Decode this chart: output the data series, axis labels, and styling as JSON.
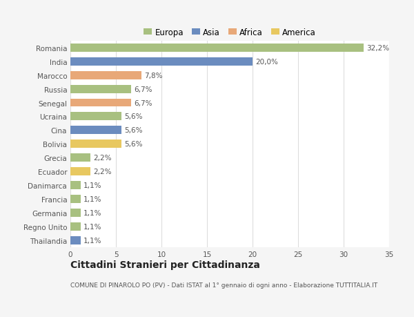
{
  "categories": [
    "Romania",
    "India",
    "Marocco",
    "Russia",
    "Senegal",
    "Ucraina",
    "Cina",
    "Bolivia",
    "Grecia",
    "Ecuador",
    "Danimarca",
    "Francia",
    "Germania",
    "Regno Unito",
    "Thailandia"
  ],
  "values": [
    32.2,
    20.0,
    7.8,
    6.7,
    6.7,
    5.6,
    5.6,
    5.6,
    2.2,
    2.2,
    1.1,
    1.1,
    1.1,
    1.1,
    1.1
  ],
  "labels": [
    "32,2%",
    "20,0%",
    "7,8%",
    "6,7%",
    "6,7%",
    "5,6%",
    "5,6%",
    "5,6%",
    "2,2%",
    "2,2%",
    "1,1%",
    "1,1%",
    "1,1%",
    "1,1%",
    "1,1%"
  ],
  "colors": [
    "#a8c080",
    "#6b8cbf",
    "#e8a878",
    "#a8c080",
    "#e8a878",
    "#a8c080",
    "#6b8cbf",
    "#e8c860",
    "#a8c080",
    "#e8c860",
    "#a8c080",
    "#a8c080",
    "#a8c080",
    "#a8c080",
    "#6b8cbf"
  ],
  "legend_labels": [
    "Europa",
    "Asia",
    "Africa",
    "America"
  ],
  "legend_colors": [
    "#a8c080",
    "#6b8cbf",
    "#e8a878",
    "#e8c860"
  ],
  "title": "Cittadini Stranieri per Cittadinanza",
  "subtitle": "COMUNE DI PINAROLO PO (PV) - Dati ISTAT al 1° gennaio di ogni anno - Elaborazione TUTTITALIA.IT",
  "xlim": [
    0,
    35
  ],
  "xticks": [
    0,
    5,
    10,
    15,
    20,
    25,
    30,
    35
  ],
  "background_color": "#f5f5f5",
  "plot_background": "#ffffff",
  "grid_color": "#dddddd",
  "bar_height": 0.6,
  "label_fontsize": 7.5,
  "tick_fontsize": 7.5,
  "title_fontsize": 10,
  "subtitle_fontsize": 6.5,
  "legend_fontsize": 8.5
}
